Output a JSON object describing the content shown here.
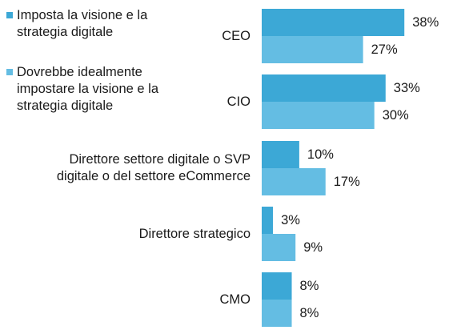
{
  "chart_data": {
    "type": "bar",
    "orientation": "horizontal",
    "categories": [
      "CEO",
      "CIO",
      "Direttore settore digitale o SVP digitale o del settore eCommerce",
      "Direttore strategico",
      "CMO"
    ],
    "category_lines": [
      [
        "CEO"
      ],
      [
        "CIO"
      ],
      [
        "Direttore settore digitale o SVP",
        "digitale o del settore eCommerce"
      ],
      [
        "Direttore strategico"
      ],
      [
        "CMO"
      ]
    ],
    "series": [
      {
        "name": "Imposta la visione e la strategia digitale",
        "name_lines": [
          "Imposta la visione e la",
          "strategia digitale"
        ],
        "values": [
          38,
          33,
          10,
          3,
          8
        ],
        "labels": [
          "38%",
          "33%",
          "10%",
          "3%",
          "8%"
        ],
        "color": "#3ca8d6"
      },
      {
        "name": "Dovrebbe idealmente impostare la visione e la strategia digitale",
        "name_lines": [
          "Dovrebbe idealmente",
          "impostare la visione e la",
          "strategia digitale"
        ],
        "values": [
          27,
          30,
          17,
          9,
          8
        ],
        "labels": [
          "27%",
          "30%",
          "17%",
          "9%",
          "8%"
        ],
        "color": "#64bde3"
      }
    ],
    "value_unit": "%",
    "xlim": [
      0,
      40
    ],
    "grid": false,
    "legend_position": "top-left"
  }
}
